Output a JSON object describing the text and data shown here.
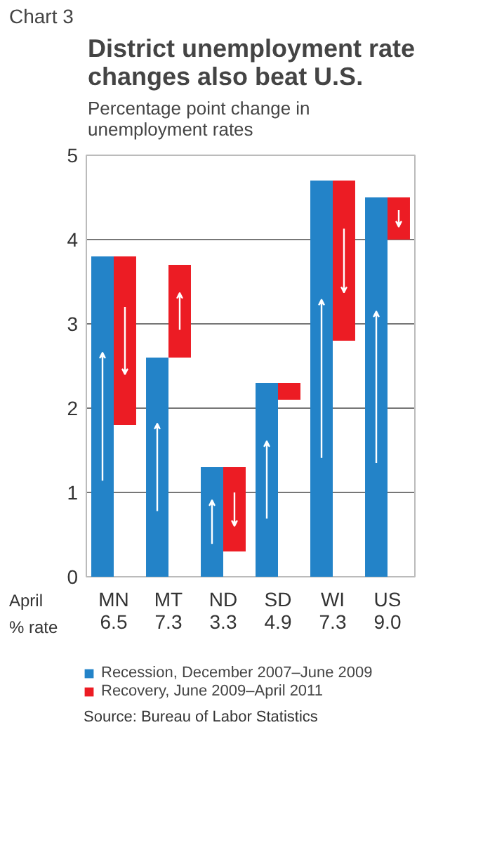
{
  "chart_data": {
    "type": "bar",
    "title": "District unemployment rate changes also beat U.S.",
    "subtitle": "Percentage point change in unemployment rates",
    "categories": [
      "MN",
      "MT",
      "ND",
      "SD",
      "WI",
      "US"
    ],
    "series": [
      {
        "name": "Recession, December 2007–June 2009",
        "color": "#2383c8",
        "values": [
          3.8,
          2.6,
          1.3,
          2.3,
          4.7,
          4.5
        ]
      },
      {
        "name": "Recovery, June 2009–April 2011",
        "color": "#ec1c24",
        "base": [
          3.8,
          2.6,
          1.3,
          2.3,
          4.7,
          4.5
        ],
        "values": [
          -2.0,
          1.1,
          -1.0,
          -0.2,
          -1.9,
          -0.5
        ]
      }
    ],
    "ylim": [
      0,
      5
    ],
    "yticks": [
      0,
      1,
      2,
      3,
      4,
      5
    ],
    "grid": "y",
    "legend": "bottom",
    "annotations": [
      "Chart 3",
      "April",
      "% rate",
      "6.5",
      "7.3",
      "3.3",
      "4.9",
      "7.3",
      "9.0",
      "Source: Bureau of Labor Statistics"
    ]
  }
}
